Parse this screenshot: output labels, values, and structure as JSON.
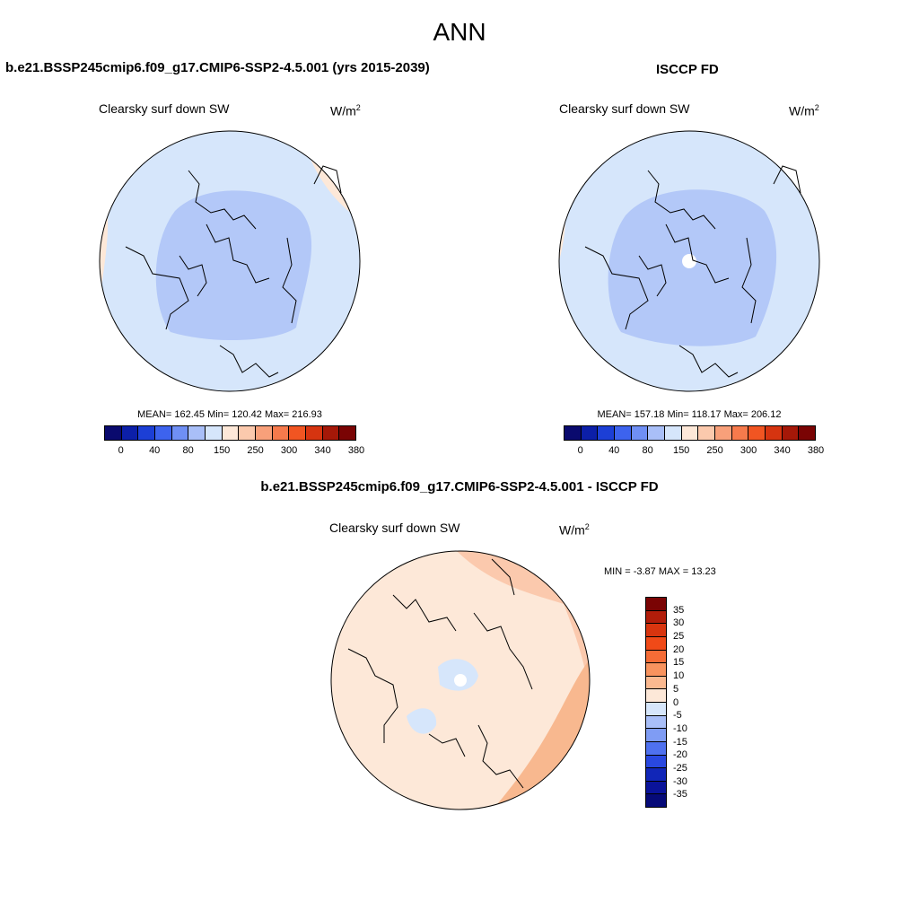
{
  "title": "ANN",
  "left_panel": {
    "case": "b.e21.BSSP245cmip6.f09_g17.CMIP6-SSP2-4.5.001 (yrs 2015-2039)",
    "label": "Clearsky surf down SW",
    "unit": "W/m",
    "unit_sup": "2",
    "stats": "MEAN= 162.45  Min= 120.42  Max= 216.93"
  },
  "right_panel": {
    "case": "ISCCP FD",
    "label": "Clearsky surf down SW",
    "unit": "W/m",
    "unit_sup": "2",
    "stats": "MEAN= 157.18  Min= 118.17  Max= 206.12"
  },
  "diff_panel": {
    "case": "b.e21.BSSP245cmip6.f09_g17.CMIP6-SSP2-4.5.001 - ISCCP FD",
    "label": "Clearsky surf down SW",
    "unit": "W/m",
    "unit_sup": "2",
    "stats": "MIN =  -3.87 MAX =  13.23"
  },
  "colorbar_abs": {
    "colors": [
      "#0a0a6e",
      "#0c1fa8",
      "#1c3fd6",
      "#3d63ee",
      "#6f8ff4",
      "#a9bff8",
      "#d6e6fb",
      "#fde8d8",
      "#fbc9ad",
      "#f8a07a",
      "#f67a4c",
      "#f15522",
      "#d63410",
      "#a51808",
      "#7a0404"
    ],
    "tick_labels": [
      "0",
      "40",
      "80",
      "150",
      "250",
      "300",
      "340",
      "380"
    ]
  },
  "colorbar_diff": {
    "colors": [
      "#7a0404",
      "#b21d0a",
      "#d8350f",
      "#f04a18",
      "#f56c36",
      "#f8935e",
      "#fbb990",
      "#fde8d8",
      "#d6e6fb",
      "#a9bff8",
      "#7f9cf4",
      "#4f71ef",
      "#2948e0",
      "#1126b8",
      "#0a139a",
      "#060a78"
    ],
    "tick_labels": [
      "35",
      "30",
      "25",
      "20",
      "15",
      "10",
      "5",
      "0",
      "-5",
      "-10",
      "-15",
      "-20",
      "-25",
      "-30",
      "-35"
    ]
  }
}
